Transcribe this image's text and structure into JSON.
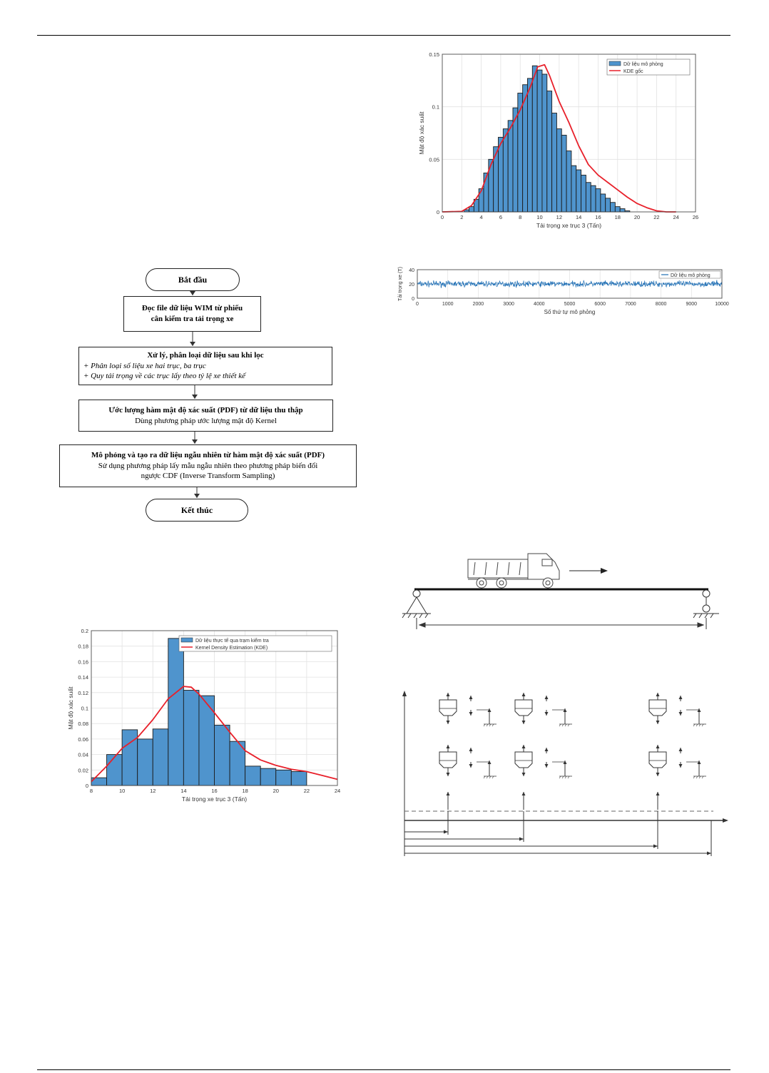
{
  "flowchart": {
    "start": "Bắt đầu",
    "step1_line1": "Đọc file dữ liệu WIM từ phiếu",
    "step1_line2": "cân kiểm tra tải trọng xe",
    "step2_title": "Xử lý, phân loại dữ liệu sau khi lọc",
    "step2_item1": "+ Phân loại số liệu xe hai trục, ba trục",
    "step2_item2": "+ Quy tải trọng về các trục lấy theo tỷ lệ xe thiết kế",
    "step3_line1": "Ước lượng hàm mật độ xác suất (PDF) từ dữ liệu thu thập",
    "step3_line2": "Dùng phương pháp ước lượng mật độ Kernel",
    "step4_line1": "Mô phỏng và tạo ra dữ liệu ngẫu nhiên từ hàm mật độ xác suất (PDF)",
    "step4_line2": "Sử dụng phương pháp lấy mẫu ngẫu nhiên theo phương pháp biến đổi",
    "step4_line3": "ngược CDF (Inverse Transform Sampling)",
    "end": "Kết thúc"
  },
  "chart_data": [
    {
      "type": "bar",
      "xlabel": "Tải trọng xe trục 3 (Tấn)",
      "ylabel": "Mật độ xác suất",
      "xlim": [
        0,
        26
      ],
      "ylim": [
        0,
        0.15
      ],
      "xticks": [
        "0",
        "2",
        "4",
        "6",
        "8",
        "10",
        "12",
        "14",
        "16",
        "18",
        "20",
        "22",
        "24",
        "26"
      ],
      "yticks": [
        "0",
        "0.05",
        "0.1",
        "0.15"
      ],
      "legend": [
        "Dữ liệu mô phỏng",
        "KDE gốc"
      ],
      "legend_position": "top-right",
      "grid": true,
      "bar_color": "#4f94cd",
      "line_color": "#e8202a",
      "bin_width": 0.5,
      "bins": [
        {
          "x": 2.5,
          "y": 0.002
        },
        {
          "x": 3.0,
          "y": 0.005
        },
        {
          "x": 3.5,
          "y": 0.012
        },
        {
          "x": 4.0,
          "y": 0.022
        },
        {
          "x": 4.5,
          "y": 0.037
        },
        {
          "x": 5.0,
          "y": 0.05
        },
        {
          "x": 5.5,
          "y": 0.062
        },
        {
          "x": 6.0,
          "y": 0.071
        },
        {
          "x": 6.5,
          "y": 0.079
        },
        {
          "x": 7.0,
          "y": 0.087
        },
        {
          "x": 7.5,
          "y": 0.099
        },
        {
          "x": 8.0,
          "y": 0.113
        },
        {
          "x": 8.5,
          "y": 0.121
        },
        {
          "x": 9.0,
          "y": 0.127
        },
        {
          "x": 9.5,
          "y": 0.139
        },
        {
          "x": 10.0,
          "y": 0.135
        },
        {
          "x": 10.5,
          "y": 0.131
        },
        {
          "x": 11.0,
          "y": 0.115
        },
        {
          "x": 11.5,
          "y": 0.094
        },
        {
          "x": 12.0,
          "y": 0.079
        },
        {
          "x": 12.5,
          "y": 0.073
        },
        {
          "x": 13.0,
          "y": 0.058
        },
        {
          "x": 13.5,
          "y": 0.044
        },
        {
          "x": 14.0,
          "y": 0.04
        },
        {
          "x": 14.5,
          "y": 0.035
        },
        {
          "x": 15.0,
          "y": 0.028
        },
        {
          "x": 15.5,
          "y": 0.025
        },
        {
          "x": 16.0,
          "y": 0.022
        },
        {
          "x": 16.5,
          "y": 0.017
        },
        {
          "x": 17.0,
          "y": 0.013
        },
        {
          "x": 17.5,
          "y": 0.009
        },
        {
          "x": 18.0,
          "y": 0.005
        },
        {
          "x": 18.5,
          "y": 0.003
        },
        {
          "x": 19.0,
          "y": 0.001
        }
      ],
      "kde": {
        "x": [
          0,
          2,
          3,
          4,
          5,
          6,
          7,
          8,
          9,
          9.8,
          10.5,
          11,
          12,
          13,
          14,
          15,
          16,
          17,
          18,
          19,
          20,
          21,
          22,
          23,
          24
        ],
        "y": [
          0,
          0.0005,
          0.006,
          0.02,
          0.045,
          0.065,
          0.08,
          0.097,
          0.118,
          0.138,
          0.14,
          0.13,
          0.105,
          0.085,
          0.063,
          0.045,
          0.035,
          0.028,
          0.021,
          0.014,
          0.008,
          0.004,
          0.001,
          0,
          0
        ]
      }
    },
    {
      "type": "line",
      "xlabel": "Số thứ tự mô phỏng",
      "ylabel": "Tải trọng xe (T)",
      "xlim": [
        0,
        10000
      ],
      "ylim": [
        0,
        40
      ],
      "xticks": [
        "0",
        "1000",
        "2000",
        "3000",
        "4000",
        "5000",
        "6000",
        "7000",
        "8000",
        "9000",
        "10000"
      ],
      "yticks": [
        "0",
        "20",
        "40"
      ],
      "legend": [
        "Dữ liệu mô phỏng"
      ],
      "legend_position": "top-right",
      "grid": true,
      "series_color": "#1f6fb5",
      "series_mean": 20,
      "series_band": [
        14,
        26
      ]
    },
    {
      "type": "bar",
      "xlabel": "Tải trọng xe trục 3 (Tấn)",
      "ylabel": "Mật độ xác suất",
      "xlim": [
        8,
        24
      ],
      "ylim": [
        0,
        0.2
      ],
      "xticks": [
        "8",
        "10",
        "12",
        "14",
        "16",
        "18",
        "20",
        "22",
        "24"
      ],
      "yticks": [
        "0",
        "0.02",
        "0.04",
        "0.06",
        "0.08",
        "0.1",
        "0.12",
        "0.14",
        "0.16",
        "0.18",
        "0.2"
      ],
      "legend": [
        "Dữ liệu thực tế qua trạm kiểm tra",
        "Kernel Density Estimation (KDE)"
      ],
      "legend_position": "top-right",
      "grid": true,
      "bar_color": "#4f94cd",
      "line_color": "#e8202a",
      "bin_width": 1,
      "bins": [
        {
          "x": 8.5,
          "y": 0.01
        },
        {
          "x": 9.5,
          "y": 0.04
        },
        {
          "x": 10.5,
          "y": 0.072
        },
        {
          "x": 11.5,
          "y": 0.06
        },
        {
          "x": 12.5,
          "y": 0.073
        },
        {
          "x": 13.5,
          "y": 0.19
        },
        {
          "x": 14.5,
          "y": 0.123
        },
        {
          "x": 15.5,
          "y": 0.116
        },
        {
          "x": 16.5,
          "y": 0.078
        },
        {
          "x": 17.5,
          "y": 0.057
        },
        {
          "x": 18.5,
          "y": 0.025
        },
        {
          "x": 19.5,
          "y": 0.022
        },
        {
          "x": 20.5,
          "y": 0.02
        },
        {
          "x": 21.5,
          "y": 0.018
        }
      ],
      "kde": {
        "x": [
          8,
          9,
          10,
          11,
          12,
          13,
          14,
          14.5,
          15,
          16,
          17,
          18,
          19,
          20,
          21,
          22,
          23,
          24
        ],
        "y": [
          0.005,
          0.025,
          0.048,
          0.062,
          0.085,
          0.112,
          0.128,
          0.127,
          0.118,
          0.094,
          0.069,
          0.045,
          0.033,
          0.026,
          0.021,
          0.018,
          0.013,
          0.008
        ]
      }
    }
  ]
}
